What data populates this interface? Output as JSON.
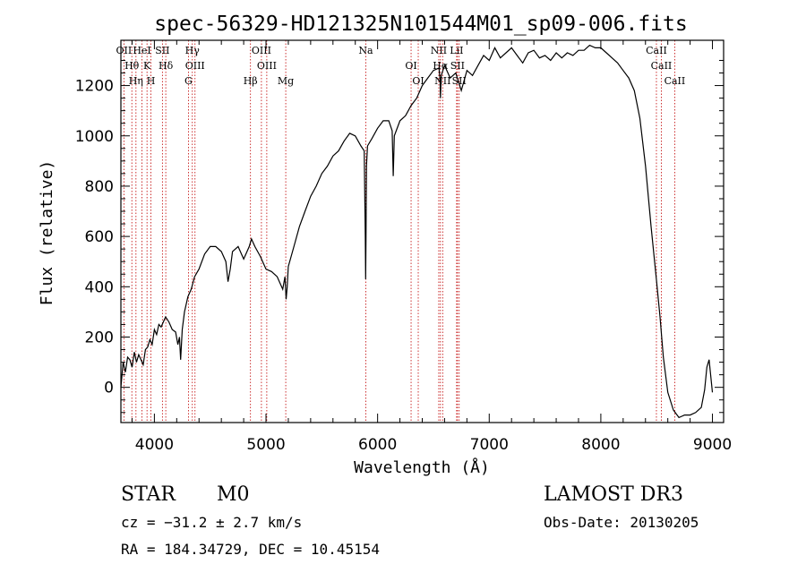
{
  "chart_data": {
    "type": "line",
    "title": "spec-56329-HD121325N101544M01_sp09-006.fits",
    "xlabel": "Wavelength (Å)",
    "ylabel": "Flux (relative)",
    "xlim": [
      3700,
      9100
    ],
    "ylim": [
      -140,
      1380
    ],
    "xticks": [
      4000,
      5000,
      6000,
      7000,
      8000,
      9000
    ],
    "yticks": [
      0,
      200,
      400,
      600,
      800,
      1000,
      1200
    ],
    "grid": false,
    "series": [
      {
        "name": "flux",
        "x": [
          3700,
          3720,
          3740,
          3760,
          3780,
          3800,
          3820,
          3840,
          3860,
          3880,
          3900,
          3920,
          3940,
          3960,
          3980,
          4000,
          4020,
          4040,
          4060,
          4080,
          4100,
          4130,
          4160,
          4190,
          4210,
          4225,
          4235,
          4250,
          4270,
          4300,
          4330,
          4360,
          4400,
          4450,
          4500,
          4550,
          4600,
          4640,
          4660,
          4680,
          4700,
          4750,
          4800,
          4850,
          4870,
          4900,
          4950,
          5000,
          5050,
          5100,
          5150,
          5170,
          5180,
          5190,
          5200,
          5250,
          5300,
          5350,
          5400,
          5450,
          5500,
          5550,
          5600,
          5650,
          5700,
          5750,
          5800,
          5850,
          5880,
          5890,
          5893,
          5896,
          5900,
          5910,
          5950,
          6000,
          6050,
          6100,
          6130,
          6140,
          6150,
          6200,
          6250,
          6300,
          6350,
          6400,
          6450,
          6500,
          6550,
          6560,
          6563,
          6570,
          6600,
          6650,
          6700,
          6750,
          6800,
          6850,
          6900,
          6950,
          7000,
          7050,
          7100,
          7150,
          7200,
          7250,
          7300,
          7350,
          7400,
          7450,
          7500,
          7550,
          7600,
          7650,
          7700,
          7750,
          7800,
          7850,
          7900,
          7950,
          8000,
          8050,
          8100,
          8150,
          8200,
          8250,
          8300,
          8350,
          8400,
          8450,
          8500,
          8530,
          8560,
          8600,
          8650,
          8700,
          8750,
          8800,
          8850,
          8900,
          8930,
          8950,
          8970,
          9000
        ],
        "values": [
          0,
          100,
          60,
          120,
          110,
          80,
          140,
          100,
          130,
          110,
          90,
          150,
          160,
          190,
          170,
          230,
          210,
          250,
          240,
          260,
          280,
          260,
          230,
          220,
          170,
          200,
          110,
          230,
          300,
          360,
          390,
          440,
          470,
          530,
          560,
          560,
          540,
          500,
          420,
          470,
          540,
          560,
          510,
          560,
          590,
          560,
          520,
          470,
          460,
          440,
          390,
          440,
          350,
          400,
          480,
          560,
          640,
          700,
          760,
          800,
          850,
          880,
          920,
          940,
          980,
          1010,
          1000,
          960,
          940,
          600,
          430,
          600,
          880,
          960,
          990,
          1030,
          1060,
          1060,
          1020,
          840,
          1000,
          1060,
          1080,
          1120,
          1150,
          1200,
          1230,
          1260,
          1270,
          1220,
          1150,
          1240,
          1280,
          1230,
          1250,
          1180,
          1260,
          1240,
          1280,
          1320,
          1300,
          1350,
          1310,
          1330,
          1350,
          1320,
          1290,
          1330,
          1340,
          1310,
          1320,
          1300,
          1330,
          1310,
          1330,
          1320,
          1340,
          1340,
          1360,
          1350,
          1350,
          1330,
          1310,
          1290,
          1260,
          1230,
          1180,
          1070,
          880,
          640,
          420,
          280,
          120,
          -20,
          -90,
          -120,
          -110,
          -110,
          -100,
          -80,
          -10,
          80,
          110,
          -20
        ]
      }
    ],
    "line_markers": [
      {
        "name": "OII",
        "x": 3727
      },
      {
        "name": "Hθ",
        "x": 3798
      },
      {
        "name": "Hη",
        "x": 3835
      },
      {
        "name": "HeI",
        "x": 3889
      },
      {
        "name": "K",
        "x": 3934
      },
      {
        "name": "H",
        "x": 3969
      },
      {
        "name": "SII",
        "x": 4072
      },
      {
        "name": "Hδ",
        "x": 4102
      },
      {
        "name": "G",
        "x": 4305
      },
      {
        "name": "Hγ",
        "x": 4340
      },
      {
        "name": "OIII",
        "x": 4364
      },
      {
        "name": "Hβ",
        "x": 4861
      },
      {
        "name": "OIII",
        "x": 4959
      },
      {
        "name": "OIII",
        "x": 5007
      },
      {
        "name": "Mg",
        "x": 5177
      },
      {
        "name": "Na",
        "x": 5894
      },
      {
        "name": "OI",
        "x": 6300
      },
      {
        "name": "OI",
        "x": 6364
      },
      {
        "name": "NII",
        "x": 6548
      },
      {
        "name": "Hα",
        "x": 6563
      },
      {
        "name": "NII",
        "x": 6583
      },
      {
        "name": "LiI",
        "x": 6708
      },
      {
        "name": "SII",
        "x": 6716
      },
      {
        "name": "SII",
        "x": 6731
      },
      {
        "name": "CaII",
        "x": 8498
      },
      {
        "name": "CaII",
        "x": 8542
      },
      {
        "name": "CaII",
        "x": 8662
      }
    ]
  },
  "info": {
    "object_class": "STAR",
    "subclass": "M0",
    "survey": "LAMOST DR3",
    "cz": "cz = −31.2 ± 2.7 km/s",
    "obs_date": "Obs-Date: 20130205",
    "coords": "RA = 184.34729, DEC =  10.45154"
  },
  "colors": {
    "line": "#000000",
    "marker": "#c00000",
    "axis": "#000000"
  }
}
